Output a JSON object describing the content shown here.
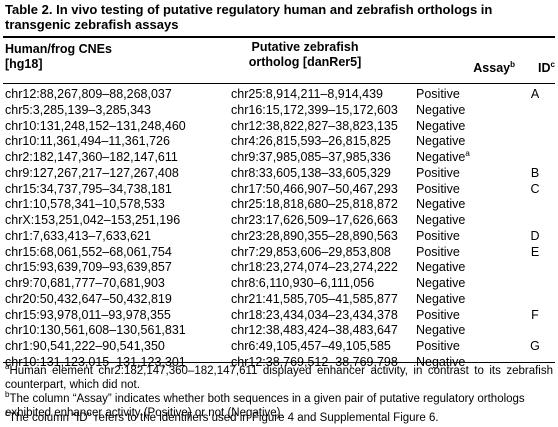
{
  "title": {
    "label": "Table 2.",
    "text": "In vivo testing of putative regulatory human and zebrafish orthologs in transgenic zebrafish assays"
  },
  "headers": {
    "col1": {
      "line1": "Human/frog CNEs",
      "line2": "[hg18]"
    },
    "col2": {
      "line1": "Putative zebrafish",
      "line2": "ortholog [danRer5]"
    },
    "col3": {
      "label": "Assay",
      "sup": "b"
    },
    "col4": {
      "label": "ID",
      "sup": "c"
    }
  },
  "rows": [
    {
      "human": "chr12:88,267,809–88,268,037",
      "zebrafish": "chr25:8,914,211–8,914,439",
      "assay": "Positive",
      "assay_sup": "",
      "id": "A"
    },
    {
      "human": "chr5:3,285,139–3,285,343",
      "zebrafish": "chr16:15,172,399–15,172,603",
      "assay": "Negative",
      "assay_sup": "",
      "id": ""
    },
    {
      "human": "chr10:131,248,152–131,248,460",
      "zebrafish": "chr12:38,822,827–38,823,135",
      "assay": "Negative",
      "assay_sup": "",
      "id": ""
    },
    {
      "human": "chr10:11,361,494–11,361,726",
      "zebrafish": "chr4:26,815,593–26,815,825",
      "assay": "Negative",
      "assay_sup": "",
      "id": ""
    },
    {
      "human": "chr2:182,147,360–182,147,611",
      "zebrafish": "chr9:37,985,085–37,985,336",
      "assay": "Negative",
      "assay_sup": "a",
      "id": ""
    },
    {
      "human": "chr9:127,267,217–127,267,408",
      "zebrafish": "chr8:33,605,138–33,605,329",
      "assay": "Positive",
      "assay_sup": "",
      "id": "B"
    },
    {
      "human": "chr15:34,737,795–34,738,181",
      "zebrafish": "chr17:50,466,907–50,467,293",
      "assay": "Positive",
      "assay_sup": "",
      "id": "C"
    },
    {
      "human": "chr1:10,578,341–10,578,533",
      "zebrafish": "chr25:18,818,680–25,818,872",
      "assay": "Negative",
      "assay_sup": "",
      "id": ""
    },
    {
      "human": "chrX:153,251,042–153,251,196",
      "zebrafish": "chr23:17,626,509–17,626,663",
      "assay": "Negative",
      "assay_sup": "",
      "id": ""
    },
    {
      "human": "chr1:7,633,413–7,633,621",
      "zebrafish": "chr23:28,890,355–28,890,563",
      "assay": "Positive",
      "assay_sup": "",
      "id": "D"
    },
    {
      "human": "chr15:68,061,552–68,061,754",
      "zebrafish": "chr7:29,853,606–29,853,808",
      "assay": "Positive",
      "assay_sup": "",
      "id": "E"
    },
    {
      "human": "chr15:93,639,709–93,639,857",
      "zebrafish": "chr18:23,274,074–23,274,222",
      "assay": "Negative",
      "assay_sup": "",
      "id": ""
    },
    {
      "human": "chr9:70,681,777–70,681,903",
      "zebrafish": "chr8:6,110,930–6,111,056",
      "assay": "Negative",
      "assay_sup": "",
      "id": ""
    },
    {
      "human": "chr20:50,432,647–50,432,819",
      "zebrafish": "chr21:41,585,705–41,585,877",
      "assay": "Negative",
      "assay_sup": "",
      "id": ""
    },
    {
      "human": "chr15:93,978,011–93,978,355",
      "zebrafish": "chr18:23,434,034–23,434,378",
      "assay": "Positive",
      "assay_sup": "",
      "id": "F"
    },
    {
      "human": "chr10:130,561,608–130,561,831",
      "zebrafish": "chr12:38,483,424–38,483,647",
      "assay": "Negative",
      "assay_sup": "",
      "id": ""
    },
    {
      "human": "chr1:90,541,222–90,541,350",
      "zebrafish": "chr6:49,105,457–49,105,585",
      "assay": "Positive",
      "assay_sup": "",
      "id": "G"
    },
    {
      "human": "chr10:131,123,015–131,123,301",
      "zebrafish": "chr12:38,769,512–38,769,798",
      "assay": "Negative",
      "assay_sup": "",
      "id": ""
    }
  ],
  "footnotes": [
    {
      "marker": "a",
      "text": "Human element chr2:182,147,360–182,147,611 displayed enhancer activity, in contrast to its zebrafish counterpart, which did not."
    },
    {
      "marker": "b",
      "text": "The column “Assay” indicates whether both sequences in a given pair of putative regulatory orthologs exhibited enhancer activity (Positive) or not (Negative)."
    },
    {
      "marker": "c",
      "text": "The column “ID” refers to the identifiers used in Figure 4 and Supplemental Figure 6."
    }
  ]
}
